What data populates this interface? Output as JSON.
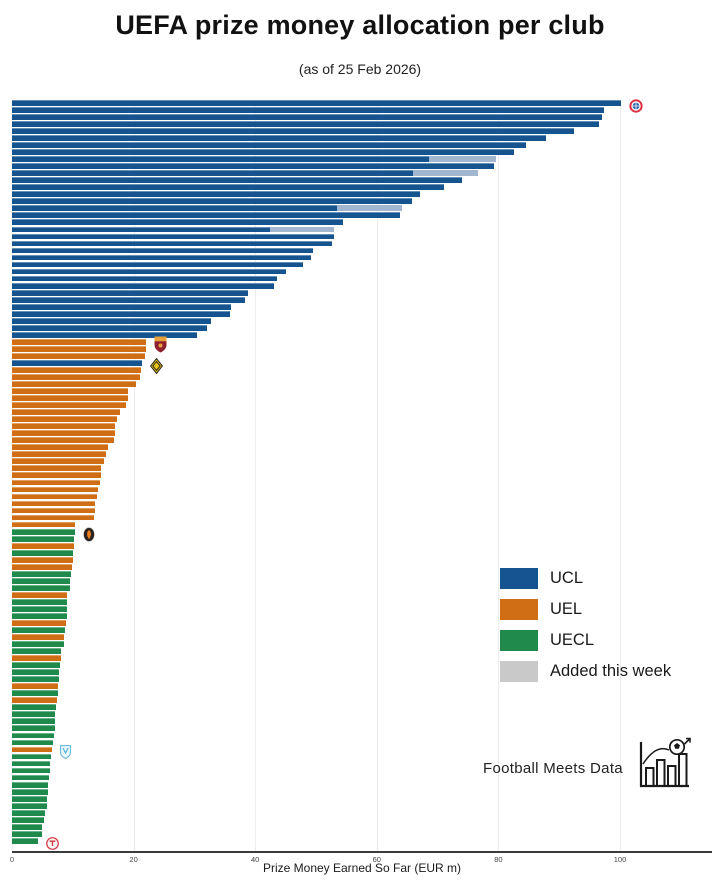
{
  "title": "UEFA prize money allocation per club",
  "subtitle": "(as of 25 Feb 2026)",
  "footer": {
    "brand": "Football Meets Data"
  },
  "legend": {
    "position": "right-middle",
    "items": [
      {
        "label": "UCL",
        "color": "#16548f"
      },
      {
        "label": "UEL",
        "color": "#cf6e14"
      },
      {
        "label": "UECL",
        "color": "#1f8a4c"
      },
      {
        "label": "Added this week",
        "color": "#c9c9c9"
      }
    ]
  },
  "chart_data": {
    "type": "bar",
    "orientation": "horizontal",
    "title": "UEFA prize money allocation per club",
    "subtitle": "(as of 25 Feb 2026)",
    "xlabel": "Prize Money Earned So Far (EUR m)",
    "xticks": [
      0,
      20,
      40,
      60,
      80,
      100
    ],
    "xlim": [
      0,
      115
    ],
    "grid": true,
    "added_overlay_on_ucl": "#a2b7cf",
    "bars_format": "[competition, value_eur_m, added_this_week_eur_m, club_crest]",
    "bars": [
      [
        "UCL",
        100.2,
        0,
        "bayern-crest"
      ],
      [
        "UCL",
        97.3
      ],
      [
        "UCL",
        97.0
      ],
      [
        "UCL",
        96.6
      ],
      [
        "UCL",
        92.4
      ],
      [
        "UCL",
        87.8
      ],
      [
        "UCL",
        84.6
      ],
      [
        "UCL",
        82.5
      ],
      [
        "UCL",
        68.6,
        11.0
      ],
      [
        "UCL",
        79.2
      ],
      [
        "UCL",
        66.0,
        10.7
      ],
      [
        "UCL",
        74.0
      ],
      [
        "UCL",
        71.0
      ],
      [
        "UCL",
        67.1
      ],
      [
        "UCL",
        65.8
      ],
      [
        "UCL",
        53.4,
        10.8
      ],
      [
        "UCL",
        63.8
      ],
      [
        "UCL",
        54.4
      ],
      [
        "UCL",
        42.4,
        10.6
      ],
      [
        "UCL",
        52.9
      ],
      [
        "UCL",
        52.7
      ],
      [
        "UCL",
        49.5
      ],
      [
        "UCL",
        49.1
      ],
      [
        "UCL",
        47.9
      ],
      [
        "UCL",
        45.0
      ],
      [
        "UCL",
        43.6
      ],
      [
        "UCL",
        43.1
      ],
      [
        "UCL",
        38.8
      ],
      [
        "UCL",
        38.4
      ],
      [
        "UCL",
        36.1
      ],
      [
        "UCL",
        35.9
      ],
      [
        "UCL",
        32.8
      ],
      [
        "UCL",
        32.1
      ],
      [
        "UCL",
        30.4
      ],
      [
        "UEL",
        22.1,
        0,
        "roma-crest"
      ],
      [
        "UEL",
        22.0
      ],
      [
        "UEL",
        21.8
      ],
      [
        "UCL",
        21.4,
        0,
        "kairat-crest"
      ],
      [
        "UEL",
        21.2
      ],
      [
        "UEL",
        21.0
      ],
      [
        "UEL",
        20.4
      ],
      [
        "UEL",
        19.1
      ],
      [
        "UEL",
        19.0
      ],
      [
        "UEL",
        18.7
      ],
      [
        "UEL",
        17.7
      ],
      [
        "UEL",
        17.2
      ],
      [
        "UEL",
        17.0
      ],
      [
        "UEL",
        17.0
      ],
      [
        "UEL",
        16.7
      ],
      [
        "UEL",
        15.8
      ],
      [
        "UEL",
        15.4
      ],
      [
        "UEL",
        15.1
      ],
      [
        "UEL",
        14.7
      ],
      [
        "UEL",
        14.7
      ],
      [
        "UEL",
        14.4
      ],
      [
        "UEL",
        14.2
      ],
      [
        "UEL",
        13.9
      ],
      [
        "UEL",
        13.7
      ],
      [
        "UEL",
        13.6
      ],
      [
        "UEL",
        13.5
      ],
      [
        "UEL",
        10.4
      ],
      [
        "UECL",
        10.3,
        0,
        "shakhtar-crest"
      ],
      [
        "UECL",
        10.2
      ],
      [
        "UEL",
        10.2
      ],
      [
        "UECL",
        10.1
      ],
      [
        "UEL",
        10.0
      ],
      [
        "UEL",
        9.9
      ],
      [
        "UECL",
        9.7
      ],
      [
        "UECL",
        9.5
      ],
      [
        "UECL",
        9.5
      ],
      [
        "UEL",
        9.1
      ],
      [
        "UECL",
        9.1
      ],
      [
        "UECL",
        9.1
      ],
      [
        "UECL",
        9.0
      ],
      [
        "UEL",
        8.8
      ],
      [
        "UECL",
        8.7
      ],
      [
        "UEL",
        8.6
      ],
      [
        "UECL",
        8.5
      ],
      [
        "UECL",
        8.1
      ],
      [
        "UEL",
        8.0
      ],
      [
        "UECL",
        7.9
      ],
      [
        "UECL",
        7.8
      ],
      [
        "UECL",
        7.7
      ],
      [
        "UEL",
        7.5
      ],
      [
        "UECL",
        7.5
      ],
      [
        "UEL",
        7.4
      ],
      [
        "UECL",
        7.3
      ],
      [
        "UECL",
        7.1
      ],
      [
        "UECL",
        7.1
      ],
      [
        "UECL",
        7.0
      ],
      [
        "UECL",
        6.9
      ],
      [
        "UECL",
        6.8
      ],
      [
        "UEL",
        6.5,
        0,
        "blue-shield-crest"
      ],
      [
        "UECL",
        6.4
      ],
      [
        "UECL",
        6.3
      ],
      [
        "UECL",
        6.2
      ],
      [
        "UECL",
        6.1
      ],
      [
        "UECL",
        5.9
      ],
      [
        "UECL",
        5.9
      ],
      [
        "UECL",
        5.8
      ],
      [
        "UECL",
        5.7
      ],
      [
        "UECL",
        5.4
      ],
      [
        "UECL",
        5.3
      ],
      [
        "UECL",
        5.0
      ],
      [
        "UECL",
        4.9
      ],
      [
        "UECL",
        4.3,
        0,
        "red-round-crest"
      ]
    ]
  }
}
